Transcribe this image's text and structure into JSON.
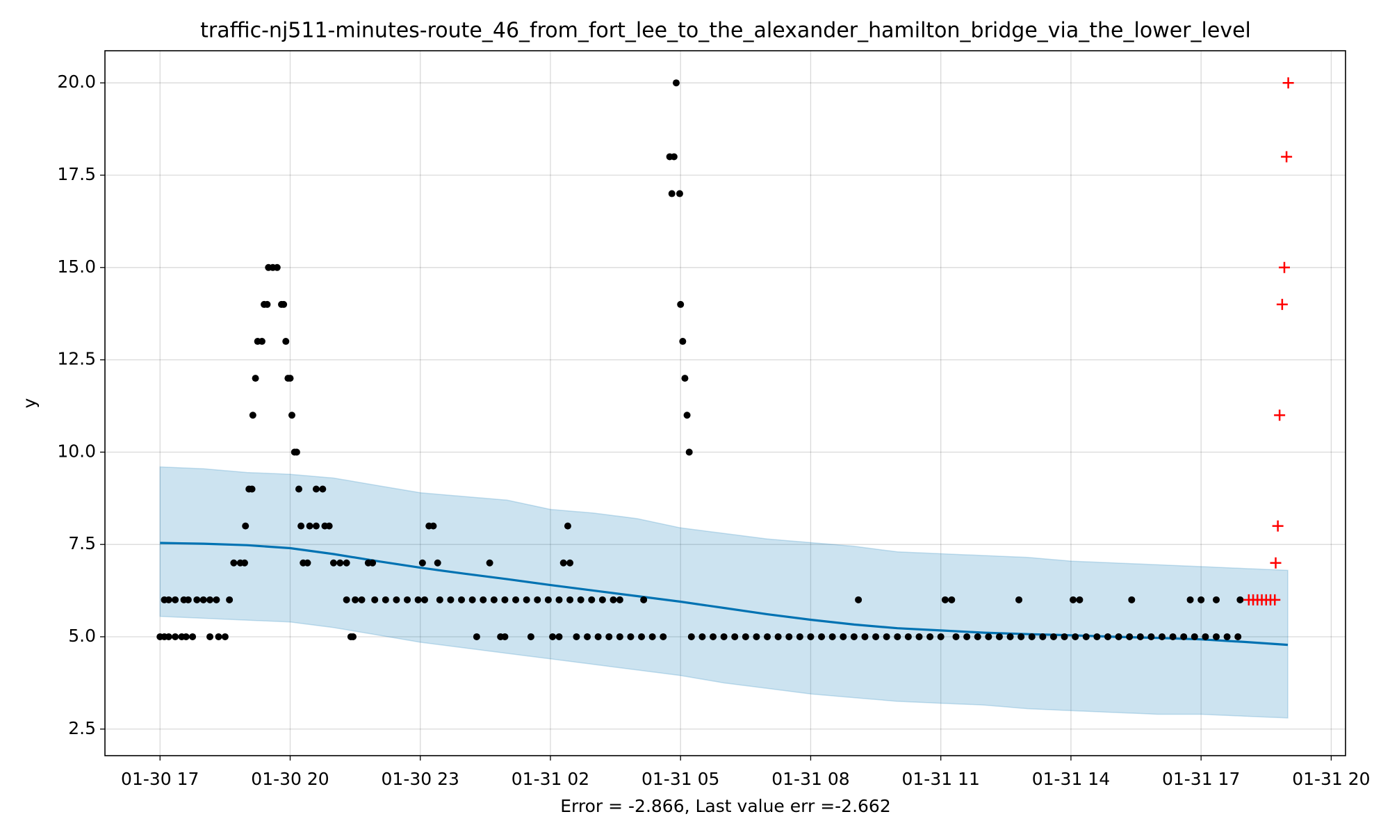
{
  "chart_data": {
    "type": "forecast",
    "title": "traffic-nj511-minutes-route_46_from_fort_lee_to_the_alexander_hamilton_bridge_via_the_lower_level",
    "ylabel": "y",
    "xlabel": "Error = -2.866, Last value err =-2.662",
    "xlim": [
      15.73,
      44.33
    ],
    "ylim": [
      1.78,
      20.87
    ],
    "xticks": [
      {
        "value": 17,
        "label": "01-30 17"
      },
      {
        "value": 20,
        "label": "01-30 20"
      },
      {
        "value": 23,
        "label": "01-30 23"
      },
      {
        "value": 26,
        "label": "01-31 02"
      },
      {
        "value": 29,
        "label": "01-31 05"
      },
      {
        "value": 32,
        "label": "01-31 08"
      },
      {
        "value": 35,
        "label": "01-31 11"
      },
      {
        "value": 38,
        "label": "01-31 14"
      },
      {
        "value": 41,
        "label": "01-31 17"
      },
      {
        "value": 44,
        "label": "01-31 20"
      }
    ],
    "yticks": [
      {
        "value": 2.5,
        "label": "2.5"
      },
      {
        "value": 5,
        "label": "5.0"
      },
      {
        "value": 7.5,
        "label": "7.5"
      },
      {
        "value": 10,
        "label": "10.0"
      },
      {
        "value": 12.5,
        "label": "12.5"
      },
      {
        "value": 15,
        "label": "15.0"
      },
      {
        "value": 17.5,
        "label": "17.5"
      },
      {
        "value": 20,
        "label": "20.0"
      }
    ],
    "grid": true,
    "interval": {
      "color": "#0072b2",
      "x": [
        17,
        18,
        19,
        20,
        21,
        22,
        23,
        24,
        25,
        26,
        27,
        28,
        29,
        30,
        31,
        32,
        33,
        34,
        35,
        36,
        37,
        38,
        39,
        40,
        41,
        42,
        43
      ],
      "upper": [
        9.6,
        9.55,
        9.45,
        9.4,
        9.3,
        9.1,
        8.9,
        8.8,
        8.7,
        8.45,
        8.35,
        8.2,
        7.95,
        7.8,
        7.65,
        7.55,
        7.45,
        7.3,
        7.25,
        7.2,
        7.15,
        7.05,
        7.0,
        6.95,
        6.9,
        6.85,
        6.8
      ],
      "lower": [
        5.55,
        5.5,
        5.45,
        5.4,
        5.25,
        5.05,
        4.85,
        4.7,
        4.55,
        4.4,
        4.25,
        4.1,
        3.95,
        3.75,
        3.6,
        3.45,
        3.35,
        3.25,
        3.2,
        3.15,
        3.05,
        3.0,
        2.95,
        2.9,
        2.9,
        2.85,
        2.8
      ]
    },
    "forecast": {
      "color": "#0072b2",
      "x": [
        17,
        18,
        19,
        20,
        21,
        22,
        23,
        24,
        25,
        26,
        27,
        28,
        29,
        30,
        31,
        32,
        33,
        34,
        35,
        36,
        37,
        38,
        39,
        40,
        41,
        42,
        43
      ],
      "values": [
        7.54,
        7.52,
        7.48,
        7.4,
        7.24,
        7.05,
        6.87,
        6.71,
        6.56,
        6.4,
        6.25,
        6.1,
        5.95,
        5.78,
        5.61,
        5.46,
        5.33,
        5.23,
        5.17,
        5.11,
        5.07,
        5.04,
        5.0,
        4.97,
        4.93,
        4.86,
        4.78
      ]
    },
    "observed": {
      "color": "#000000",
      "x": [
        17.0,
        17.1,
        17.2,
        17.35,
        17.5,
        17.6,
        17.75,
        17.1,
        17.2,
        17.35,
        17.55,
        17.65,
        17.85,
        18.0,
        18.15,
        18.3,
        18.15,
        18.35,
        18.5,
        18.6,
        18.7,
        18.85,
        18.95,
        18.97,
        19.05,
        19.12,
        19.14,
        19.2,
        19.25,
        19.35,
        19.4,
        19.47,
        19.5,
        19.6,
        19.7,
        19.8,
        19.85,
        19.9,
        19.95,
        20.0,
        20.04,
        20.1,
        20.15,
        20.2,
        20.25,
        20.45,
        20.6,
        20.8,
        20.9,
        20.3,
        20.4,
        20.6,
        20.75,
        21.0,
        21.15,
        21.3,
        21.3,
        21.5,
        21.65,
        21.4,
        21.45,
        21.8,
        21.9,
        21.95,
        22.2,
        22.45,
        22.7,
        22.95,
        23.1,
        23.05,
        23.4,
        23.2,
        23.3,
        23.45,
        23.7,
        23.95,
        24.2,
        24.45,
        24.7,
        24.95,
        25.2,
        25.45,
        25.7,
        25.95,
        26.2,
        26.45,
        26.7,
        26.95,
        27.2,
        27.45,
        27.6,
        24.6,
        24.3,
        24.85,
        24.95,
        25.55,
        26.05,
        26.2,
        26.3,
        26.45,
        26.4,
        26.6,
        26.85,
        27.1,
        27.35,
        27.6,
        27.85,
        28.1,
        28.35,
        28.6,
        28.15,
        28.75,
        28.85,
        28.8,
        28.98,
        28.9,
        29.0,
        29.05,
        29.1,
        29.15,
        29.2,
        29.25,
        29.5,
        29.75,
        30,
        30.25,
        30.5,
        30.75,
        31,
        31.25,
        31.5,
        31.75,
        32,
        32.25,
        32.5,
        32.75,
        33,
        33.25,
        33.5,
        33.75,
        34,
        34.25,
        34.5,
        34.75,
        35,
        33.1,
        35.1,
        35.25,
        35.35,
        35.6,
        35.85,
        36.1,
        36.35,
        36.6,
        36.85,
        37.1,
        37.35,
        37.6,
        37.85,
        38.1,
        38.35,
        38.6,
        38.85,
        39.1,
        39.35,
        39.6,
        39.85,
        40.1,
        40.35,
        40.6,
        40.85,
        41.1,
        41.35,
        41.6,
        41.85,
        36.8,
        38.05,
        38.2,
        39.4,
        40.75,
        41.0,
        41.35,
        41.9
      ],
      "values": [
        5,
        5,
        5,
        5,
        5,
        5,
        5,
        6,
        6,
        6,
        6,
        6,
        6,
        6,
        6,
        6,
        5,
        5,
        5,
        6,
        7,
        7,
        7,
        8,
        9,
        9,
        11,
        12,
        13,
        13,
        14,
        14,
        15,
        15,
        15,
        14,
        14,
        13,
        12,
        12,
        11,
        10,
        10,
        9,
        8,
        8,
        8,
        8,
        8,
        7,
        7,
        9,
        9,
        7,
        7,
        7,
        6,
        6,
        6,
        5,
        5,
        7,
        7,
        6,
        6,
        6,
        6,
        6,
        6,
        7,
        7,
        8,
        8,
        6,
        6,
        6,
        6,
        6,
        6,
        6,
        6,
        6,
        6,
        6,
        6,
        6,
        6,
        6,
        6,
        6,
        6,
        7,
        5,
        5,
        5,
        5,
        5,
        5,
        7,
        7,
        8,
        5,
        5,
        5,
        5,
        5,
        5,
        5,
        5,
        5,
        6,
        18,
        18,
        17,
        17,
        20,
        14,
        13,
        12,
        11,
        10,
        5,
        5,
        5,
        5,
        5,
        5,
        5,
        5,
        5,
        5,
        5,
        5,
        5,
        5,
        5,
        5,
        5,
        5,
        5,
        5,
        5,
        5,
        5,
        5,
        6,
        6,
        6,
        5,
        5,
        5,
        5,
        5,
        5,
        5,
        5,
        5,
        5,
        5,
        5,
        5,
        5,
        5,
        5,
        5,
        5,
        5,
        5,
        5,
        5,
        5,
        5,
        5,
        5,
        5,
        6,
        6,
        6,
        6,
        6,
        6,
        6,
        6
      ]
    },
    "test": {
      "color": "#ff0000",
      "x": [
        42.1,
        42.2,
        42.3,
        42.4,
        42.5,
        42.6,
        42.7,
        42.72,
        42.77,
        42.81,
        42.87,
        42.92,
        42.97,
        43.01
      ],
      "values": [
        6,
        6,
        6,
        6,
        6,
        6,
        6,
        7,
        8,
        11,
        14,
        15,
        18,
        20
      ]
    }
  }
}
